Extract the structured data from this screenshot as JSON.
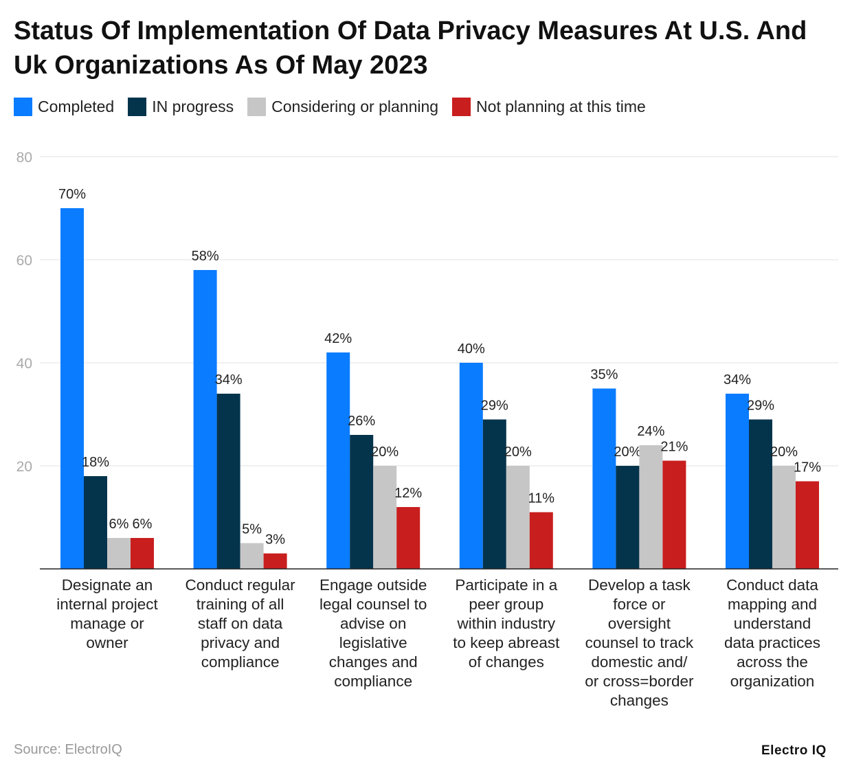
{
  "title": "Status Of Implementation Of Data Privacy Measures At U.S. And Uk Organizations As Of May 2023",
  "source": "Source: ElectroIQ",
  "logo_text": "Electro IQ",
  "chart_data": {
    "type": "bar",
    "title": "Status Of Implementation Of Data Privacy Measures At U.S. And Uk Organizations As Of May 2023",
    "xlabel": "",
    "ylabel": "",
    "ylim": [
      0,
      80
    ],
    "yticks": [
      20,
      40,
      60,
      80
    ],
    "grid": true,
    "legend_position": "top-left",
    "categories": [
      [
        "Designate an",
        "internal project",
        "manage or",
        "owner"
      ],
      [
        "Conduct regular",
        "training of all",
        "staff on data",
        "privacy and",
        "compliance"
      ],
      [
        "Engage outside",
        "legal counsel to",
        "advise on",
        "legislative",
        "changes and",
        "compliance"
      ],
      [
        "Participate in a",
        "peer group",
        "within industry",
        "to keep abreast",
        "of changes"
      ],
      [
        "Develop a task",
        "force or",
        "oversight",
        "counsel to track",
        "domestic and/",
        "or cross=border",
        "changes"
      ],
      [
        "Conduct data",
        "mapping and",
        "understand",
        "data practices",
        "across the",
        "organization"
      ]
    ],
    "series": [
      {
        "name": "Completed",
        "color": "#0a7cff",
        "values": [
          70,
          58,
          42,
          40,
          35,
          34
        ],
        "labels": [
          "70%",
          "58%",
          "42%",
          "40%",
          "35%",
          "34%"
        ]
      },
      {
        "name": "IN progress",
        "color": "#04344c",
        "values": [
          18,
          34,
          26,
          29,
          20,
          29
        ],
        "labels": [
          "18%",
          "34%",
          "26%",
          "29%",
          "20%",
          "29%"
        ]
      },
      {
        "name": "Considering or planning",
        "color": "#c6c6c6",
        "values": [
          6,
          5,
          20,
          20,
          24,
          20
        ],
        "labels": [
          "6%",
          "5%",
          "20%",
          "20%",
          "24%",
          "20%"
        ]
      },
      {
        "name": "Not planning at this time",
        "color": "#c81e1e",
        "values": [
          6,
          3,
          12,
          11,
          21,
          17
        ],
        "labels": [
          "6%",
          "3%",
          "12%",
          "11%",
          "21%",
          "17%"
        ]
      }
    ]
  }
}
